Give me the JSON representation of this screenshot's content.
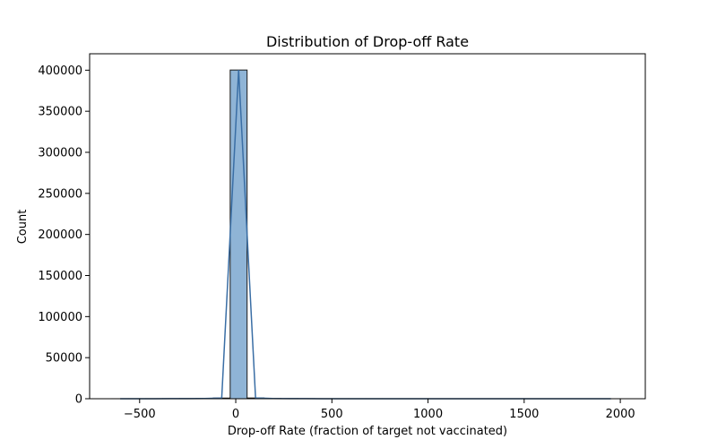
{
  "chart_data": {
    "type": "bar",
    "subtype": "histogram",
    "title": "Distribution of Drop-off Rate",
    "xlabel": "Drop-off Rate (fraction of target not vaccinated)",
    "ylabel": "Count",
    "xlim": [
      -760,
      2130
    ],
    "ylim": [
      0,
      420000
    ],
    "xticks": [
      -500,
      0,
      500,
      1000,
      1500,
      2000
    ],
    "xtick_labels": [
      "−500",
      "0",
      "500",
      "1000",
      "1500",
      "2000"
    ],
    "yticks": [
      0,
      50000,
      100000,
      150000,
      200000,
      250000,
      300000,
      350000,
      400000
    ],
    "ytick_labels": [
      "0",
      "50000",
      "100000",
      "150000",
      "200000",
      "250000",
      "300000",
      "350000",
      "400000"
    ],
    "bin_edges": [
      -645,
      -557,
      -469,
      -381,
      -293,
      -205,
      -117,
      -29,
      59,
      147,
      235,
      323,
      411,
      499,
      587,
      675,
      763,
      851,
      939,
      1027,
      1115,
      1203,
      1291,
      1379,
      1467,
      1555,
      1643,
      1731,
      1819,
      1907,
      1995
    ],
    "counts": [
      10,
      20,
      40,
      80,
      150,
      300,
      800,
      400200,
      900,
      300,
      150,
      80,
      40,
      30,
      20,
      15,
      10,
      8,
      6,
      5,
      4,
      3,
      3,
      2,
      2,
      2,
      1,
      1,
      1,
      1
    ],
    "bar_color": "#8fb4d6",
    "edge_color": "#1a1a1a",
    "kde_line": true,
    "kde_color": "#3a6ea5",
    "grid": false,
    "legend": "none"
  }
}
